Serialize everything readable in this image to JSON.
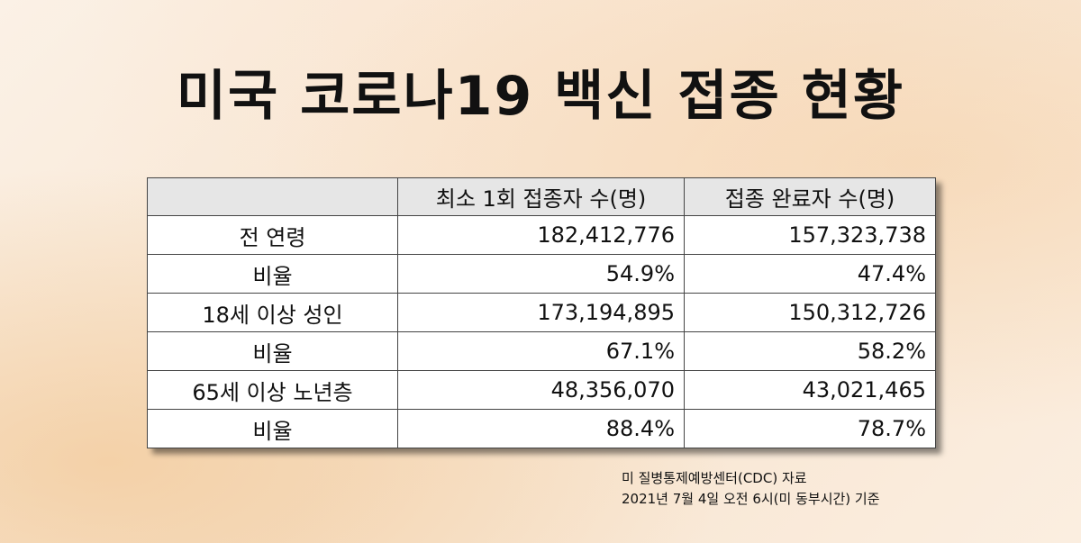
{
  "title": "미국 코로나19 백신 접종 현황",
  "table": {
    "header": [
      "최소 1회 접종자 수(명)",
      "접종 완료자 수(명)"
    ],
    "rows": [
      [
        "전 연령",
        "182,412,776",
        "157,323,738"
      ],
      [
        "비율",
        "54.9%",
        "47.4%"
      ],
      [
        "18세 이상 성인",
        "173,194,895",
        "150,312,726"
      ],
      [
        "비율",
        "67.1%",
        "58.2%"
      ],
      [
        "65세 이상 노년층",
        "48,356,070",
        "43,021,465"
      ],
      [
        "비율",
        "88.4%",
        "78.7%"
      ]
    ]
  },
  "notes": [
    "미 질병통제예방센터(CDC) 자료",
    "2021년 7월 4일 오전 6시(미 동부시간) 기준"
  ]
}
